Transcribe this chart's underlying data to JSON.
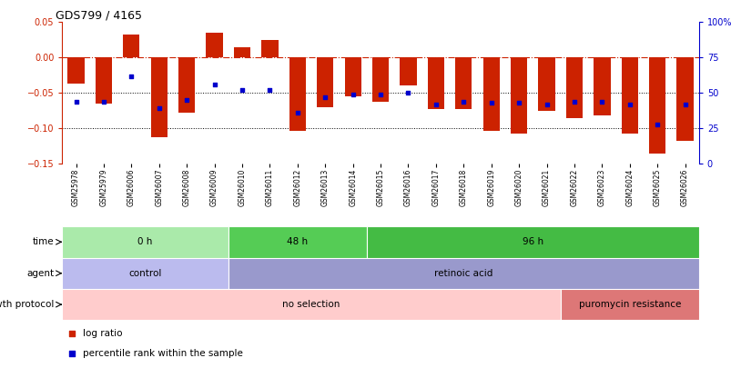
{
  "title": "GDS799 / 4165",
  "samples": [
    "GSM25978",
    "GSM25979",
    "GSM26006",
    "GSM26007",
    "GSM26008",
    "GSM26009",
    "GSM26010",
    "GSM26011",
    "GSM26012",
    "GSM26013",
    "GSM26014",
    "GSM26015",
    "GSM26016",
    "GSM26017",
    "GSM26018",
    "GSM26019",
    "GSM26020",
    "GSM26021",
    "GSM26022",
    "GSM26023",
    "GSM26024",
    "GSM26025",
    "GSM26026"
  ],
  "log_ratio": [
    -0.037,
    -0.065,
    0.032,
    -0.112,
    -0.078,
    0.035,
    0.014,
    0.025,
    -0.103,
    -0.07,
    -0.055,
    -0.062,
    -0.04,
    -0.073,
    -0.073,
    -0.104,
    -0.108,
    -0.075,
    -0.085,
    -0.082,
    -0.107,
    -0.135,
    -0.118
  ],
  "percentile": [
    0.44,
    0.44,
    0.62,
    0.39,
    0.45,
    0.56,
    0.52,
    0.52,
    0.36,
    0.47,
    0.49,
    0.49,
    0.5,
    0.42,
    0.44,
    0.43,
    0.43,
    0.42,
    0.44,
    0.44,
    0.42,
    0.28,
    0.42
  ],
  "bar_color": "#cc2200",
  "dot_color": "#0000cc",
  "ylim_left": [
    -0.15,
    0.05
  ],
  "ylim_right": [
    0,
    1.0
  ],
  "yticks_left": [
    -0.15,
    -0.1,
    -0.05,
    0.0,
    0.05
  ],
  "yticks_right": [
    0,
    0.25,
    0.5,
    0.75,
    1.0
  ],
  "ytick_labels_right": [
    "0",
    "25",
    "50",
    "75",
    "100%"
  ],
  "time_labels": [
    {
      "label": "0 h",
      "start": 0,
      "end": 6,
      "color": "#aaeaaa"
    },
    {
      "label": "48 h",
      "start": 6,
      "end": 11,
      "color": "#55cc55"
    },
    {
      "label": "96 h",
      "start": 11,
      "end": 23,
      "color": "#44bb44"
    }
  ],
  "agent_labels": [
    {
      "label": "control",
      "start": 0,
      "end": 6,
      "color": "#bbbbee"
    },
    {
      "label": "retinoic acid",
      "start": 6,
      "end": 23,
      "color": "#9999cc"
    }
  ],
  "growth_labels": [
    {
      "label": "no selection",
      "start": 0,
      "end": 18,
      "color": "#ffcccc"
    },
    {
      "label": "puromycin resistance",
      "start": 18,
      "end": 23,
      "color": "#dd7777"
    }
  ],
  "row_labels": [
    "time",
    "agent",
    "growth protocol"
  ],
  "legend_items": [
    {
      "label": "log ratio",
      "color": "#cc2200"
    },
    {
      "label": "percentile rank within the sample",
      "color": "#0000cc"
    }
  ],
  "bg_color": "#ffffff"
}
